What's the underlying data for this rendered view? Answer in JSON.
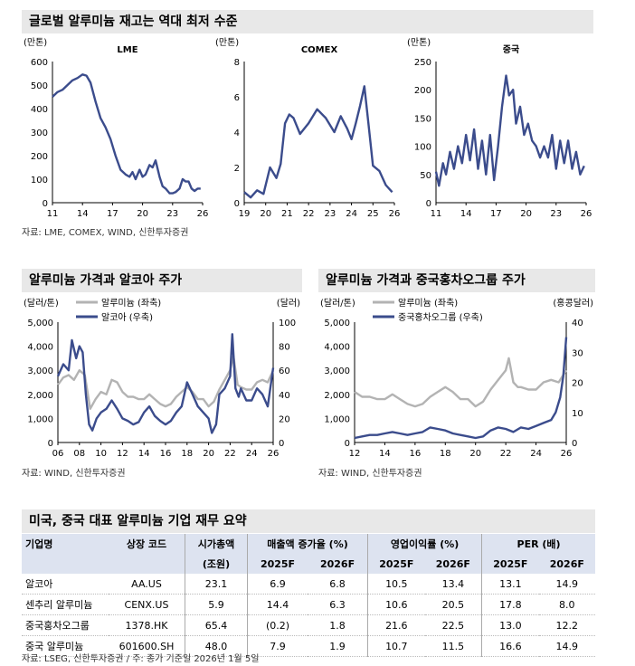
{
  "top": {
    "title": "글로벌 알루미늄 재고는 역대 최저 수준",
    "source": "자료: LME, COMEX, WIND, 신한투자증권"
  },
  "chart_data": [
    {
      "type": "line",
      "title": "LME",
      "unit_label": "(만톤)",
      "ylim": [
        0,
        600
      ],
      "yticks": [
        0,
        100,
        200,
        300,
        400,
        500,
        600
      ],
      "xlim": [
        2011,
        2026
      ],
      "xticks": [
        "11",
        "14",
        "17",
        "20",
        "23",
        "26"
      ],
      "series": [
        {
          "color": "#3b4c8c",
          "x": [
            2011,
            2011.5,
            2012,
            2012.5,
            2013,
            2013.5,
            2014,
            2014.4,
            2014.8,
            2015.3,
            2015.8,
            2016.3,
            2016.8,
            2017.3,
            2017.8,
            2018.3,
            2018.7,
            2019.0,
            2019.3,
            2019.7,
            2020.0,
            2020.3,
            2020.7,
            2021.0,
            2021.3,
            2021.7,
            2022.0,
            2022.3,
            2022.7,
            2023.0,
            2023.3,
            2023.7,
            2024.0,
            2024.3,
            2024.6,
            2024.9,
            2025.2,
            2025.5,
            2025.8
          ],
          "y": [
            450,
            470,
            480,
            500,
            520,
            530,
            545,
            540,
            510,
            430,
            360,
            320,
            270,
            200,
            140,
            120,
            110,
            130,
            100,
            140,
            110,
            120,
            160,
            150,
            180,
            110,
            70,
            60,
            40,
            40,
            45,
            60,
            100,
            90,
            90,
            60,
            50,
            60,
            60
          ]
        }
      ]
    },
    {
      "type": "line",
      "title": "COMEX",
      "unit_label": "(만톤)",
      "ylim": [
        0,
        8
      ],
      "yticks": [
        0,
        2,
        4,
        6,
        8
      ],
      "xlim": [
        2019,
        2026
      ],
      "xticks": [
        "19",
        "20",
        "21",
        "22",
        "23",
        "24",
        "25",
        "26"
      ],
      "series": [
        {
          "color": "#3b4c8c",
          "x": [
            2019,
            2019.3,
            2019.6,
            2019.9,
            2020.2,
            2020.5,
            2020.7,
            2020.9,
            2021.1,
            2021.3,
            2021.6,
            2022.0,
            2022.4,
            2022.8,
            2023.2,
            2023.5,
            2023.8,
            2024.0,
            2024.2,
            2024.4,
            2024.6,
            2024.8,
            2025.0,
            2025.3,
            2025.6,
            2025.9
          ],
          "y": [
            0.6,
            0.3,
            0.7,
            0.5,
            2.0,
            1.4,
            2.2,
            4.5,
            5.0,
            4.8,
            3.9,
            4.5,
            5.3,
            4.8,
            4.0,
            4.9,
            4.2,
            3.6,
            4.5,
            5.5,
            6.6,
            4.4,
            2.1,
            1.8,
            1.0,
            0.6
          ]
        }
      ]
    },
    {
      "type": "line",
      "title": "중국",
      "unit_label": "(만톤)",
      "ylim": [
        0,
        250
      ],
      "yticks": [
        0,
        50,
        100,
        150,
        200,
        250
      ],
      "xlim": [
        2011,
        2026
      ],
      "xticks": [
        "11",
        "14",
        "17",
        "20",
        "23",
        "26"
      ],
      "series": [
        {
          "color": "#3b4c8c",
          "x": [
            2011,
            2011.3,
            2011.7,
            2012,
            2012.4,
            2012.8,
            2013.2,
            2013.6,
            2014,
            2014.4,
            2014.8,
            2015.2,
            2015.6,
            2016,
            2016.4,
            2016.8,
            2017.2,
            2017.6,
            2018.0,
            2018.3,
            2018.7,
            2019.0,
            2019.4,
            2019.8,
            2020.2,
            2020.6,
            2021.0,
            2021.4,
            2021.8,
            2022.2,
            2022.6,
            2023.0,
            2023.4,
            2023.8,
            2024.2,
            2024.6,
            2025.0,
            2025.4,
            2025.8
          ],
          "y": [
            55,
            30,
            70,
            50,
            90,
            60,
            100,
            70,
            120,
            75,
            130,
            60,
            110,
            50,
            120,
            40,
            100,
            170,
            225,
            190,
            200,
            140,
            170,
            120,
            140,
            110,
            100,
            80,
            100,
            80,
            120,
            60,
            110,
            70,
            110,
            60,
            90,
            50,
            65
          ]
        }
      ]
    },
    {
      "type": "line",
      "title": "알루미늄 가격과 알코아 주가",
      "unit_label_left": "(달러/톤)",
      "unit_label_right": "(달러)",
      "ylim": [
        0,
        5000
      ],
      "yticks": [
        "0",
        "1,000",
        "2,000",
        "3,000",
        "4,000",
        "5,000"
      ],
      "ylim_right": [
        0,
        100
      ],
      "yticks_right": [
        "0",
        "20",
        "40",
        "60",
        "80",
        "100"
      ],
      "xlim": [
        2006,
        2026
      ],
      "xticks": [
        "06",
        "08",
        "10",
        "12",
        "14",
        "16",
        "18",
        "20",
        "22",
        "24",
        "26"
      ],
      "series": [
        {
          "name": "알루미늄 (좌축)",
          "color": "#b3b3b3",
          "axis": "left",
          "x": [
            2006,
            2006.5,
            2007,
            2007.5,
            2008,
            2008.5,
            2009,
            2009.5,
            2010,
            2010.5,
            2011,
            2011.5,
            2012,
            2012.5,
            2013,
            2013.5,
            2014,
            2014.5,
            2015,
            2015.5,
            2016,
            2016.5,
            2017,
            2017.5,
            2018,
            2018.5,
            2019,
            2019.5,
            2020,
            2020.5,
            2021,
            2021.5,
            2022,
            2022.3,
            2022.7,
            2023,
            2023.5,
            2024,
            2024.5,
            2025,
            2025.5,
            2026
          ],
          "y": [
            2400,
            2700,
            2800,
            2600,
            3000,
            2800,
            1400,
            1800,
            2100,
            2000,
            2600,
            2500,
            2100,
            1900,
            1900,
            1800,
            1800,
            2000,
            1800,
            1600,
            1500,
            1600,
            1900,
            2100,
            2300,
            2100,
            1800,
            1800,
            1500,
            1700,
            2200,
            2600,
            3000,
            3600,
            2400,
            2300,
            2200,
            2200,
            2500,
            2600,
            2500,
            3000
          ]
        },
        {
          "name": "알코아 (우축)",
          "color": "#3b4c8c",
          "axis": "right",
          "x": [
            2006,
            2006.5,
            2007,
            2007.3,
            2007.7,
            2008,
            2008.3,
            2008.6,
            2008.9,
            2009.2,
            2009.6,
            2010,
            2010.5,
            2011,
            2011.5,
            2012,
            2012.5,
            2013,
            2013.5,
            2014,
            2014.5,
            2015,
            2015.5,
            2016,
            2016.5,
            2017,
            2017.5,
            2018,
            2018.5,
            2019,
            2019.5,
            2020,
            2020.3,
            2020.7,
            2021,
            2021.5,
            2022,
            2022.2,
            2022.5,
            2022.8,
            2023,
            2023.5,
            2024,
            2024.5,
            2025,
            2025.5,
            2026
          ],
          "y": [
            55,
            65,
            60,
            85,
            70,
            80,
            75,
            40,
            15,
            10,
            20,
            25,
            28,
            35,
            28,
            20,
            18,
            15,
            17,
            25,
            30,
            22,
            18,
            15,
            18,
            25,
            30,
            50,
            40,
            30,
            25,
            20,
            8,
            15,
            40,
            45,
            55,
            90,
            45,
            38,
            45,
            35,
            35,
            45,
            40,
            30,
            62
          ]
        }
      ]
    },
    {
      "type": "line",
      "title": "알루미늄 가격과 중국홍차오그룹 주가",
      "unit_label_left": "(달러/톤)",
      "unit_label_right": "(홍콩달러)",
      "ylim": [
        0,
        5000
      ],
      "yticks": [
        "0",
        "1,000",
        "2,000",
        "3,000",
        "4,000",
        "5,000"
      ],
      "ylim_right": [
        0,
        40
      ],
      "yticks_right": [
        "0",
        "10",
        "20",
        "30",
        "40"
      ],
      "xlim": [
        2012,
        2026
      ],
      "xticks": [
        "12",
        "14",
        "16",
        "18",
        "20",
        "22",
        "24",
        "26"
      ],
      "series": [
        {
          "name": "알루미늄 (좌축)",
          "color": "#b3b3b3",
          "axis": "left",
          "x": [
            2012,
            2012.5,
            2013,
            2013.5,
            2014,
            2014.5,
            2015,
            2015.5,
            2016,
            2016.5,
            2017,
            2017.5,
            2018,
            2018.5,
            2019,
            2019.5,
            2020,
            2020.5,
            2021,
            2021.5,
            2022,
            2022.2,
            2022.5,
            2022.8,
            2023,
            2023.5,
            2024,
            2024.5,
            2025,
            2025.5,
            2026
          ],
          "y": [
            2100,
            1900,
            1900,
            1800,
            1800,
            2000,
            1800,
            1600,
            1500,
            1600,
            1900,
            2100,
            2300,
            2100,
            1800,
            1800,
            1500,
            1700,
            2200,
            2600,
            3000,
            3500,
            2500,
            2300,
            2300,
            2200,
            2200,
            2500,
            2600,
            2500,
            3000
          ]
        },
        {
          "name": "중국홍차오그룹 (우축)",
          "color": "#3b4c8c",
          "axis": "right",
          "x": [
            2012,
            2012.5,
            2013,
            2013.5,
            2014,
            2014.5,
            2015,
            2015.5,
            2016,
            2016.5,
            2017,
            2017.5,
            2018,
            2018.5,
            2019,
            2019.5,
            2020,
            2020.5,
            2021,
            2021.5,
            2022,
            2022.5,
            2023,
            2023.5,
            2024,
            2024.5,
            2025,
            2025.3,
            2025.6,
            2025.8,
            2026
          ],
          "y": [
            1.5,
            2,
            2.5,
            2.5,
            3,
            3.5,
            3,
            2.5,
            3,
            3.5,
            5,
            4.5,
            4,
            3,
            2.5,
            2,
            1.5,
            2,
            4,
            5,
            4.5,
            3.5,
            5,
            4.5,
            5.5,
            6.5,
            7.5,
            10,
            15,
            22,
            35
          ]
        }
      ]
    }
  ],
  "mid": {
    "left_title": "알루미늄 가격과 알코아 주가",
    "right_title": "알루미늄 가격과 중국홍차오그룹 주가",
    "source_left": "자료: WIND, 신한투자증권",
    "source_right": "자료: WIND, 신한투자증권"
  },
  "table": {
    "title": "미국, 중국 대표 알루미늄 기업 재무 요약",
    "headers_row1": [
      "기업명",
      "상장 코드",
      "시가총액",
      "매출액 증가율 (%)",
      "영업이익률 (%)",
      "PER (배)"
    ],
    "headers_row2": [
      "",
      "",
      "(조원)",
      "2025F",
      "2026F",
      "2025F",
      "2026F",
      "2025F",
      "2026F"
    ],
    "rows": [
      [
        "알코아",
        "AA.US",
        "23.1",
        "6.9",
        "6.8",
        "10.5",
        "13.4",
        "13.1",
        "14.9"
      ],
      [
        "센추리 알루미늄",
        "CENX.US",
        "5.9",
        "14.4",
        "6.3",
        "10.6",
        "20.5",
        "17.8",
        "8.0"
      ],
      [
        "중국홍차오그룹",
        "1378.HK",
        "65.4",
        "(0.2)",
        "1.8",
        "21.6",
        "22.5",
        "13.0",
        "12.2"
      ],
      [
        "중국 알루미늄",
        "601600.SH",
        "48.0",
        "7.9",
        "1.9",
        "10.7",
        "11.5",
        "16.6",
        "14.9"
      ]
    ],
    "source": "자료: LSEG, 신한투자증권   / 주: 종가 기준일 2026년 1월 5일"
  }
}
